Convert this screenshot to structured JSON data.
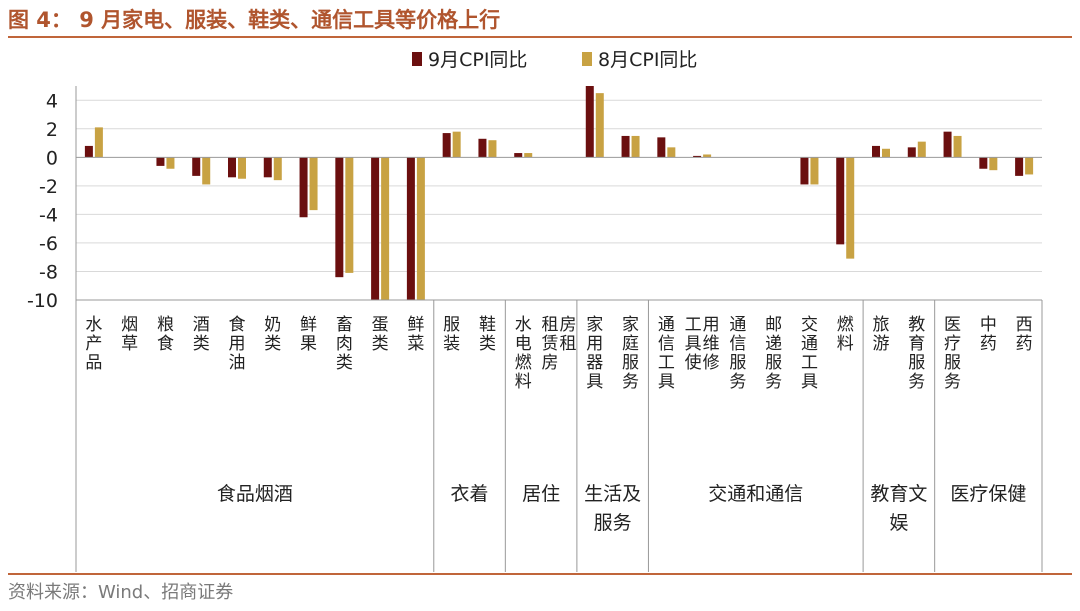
{
  "header": {
    "title": "图 4： 9 月家电、服装、鞋类、通信工具等价格上行"
  },
  "footer": {
    "source": "资料来源：Wind、招商证券"
  },
  "colors": {
    "accent": "#c0653a",
    "series1": "#6b0f0f",
    "series2": "#c8a243"
  },
  "chart_data": {
    "type": "bar",
    "title": "",
    "xlabel": "",
    "ylabel": "",
    "ylim": [
      -10,
      5
    ],
    "yticks": [
      4,
      2,
      0,
      -2,
      -4,
      -6,
      -8,
      -10
    ],
    "grid": true,
    "legend_position": "top",
    "categories": [
      "水产品",
      "烟草",
      "粮食",
      "酒类",
      "食用油",
      "奶类",
      "鲜果",
      "畜肉类",
      "蛋类",
      "鲜菜",
      "服装",
      "鞋类",
      "水电燃料",
      "租赁房房租",
      "家用器具",
      "家庭服务",
      "通信工具",
      "工具使用维修",
      "通信服务",
      "邮递服务",
      "交通工具",
      "燃料",
      "旅游",
      "教育服务",
      "医疗服务",
      "中药",
      "西药"
    ],
    "groups": [
      {
        "label": "食品烟酒",
        "count": 10
      },
      {
        "label": "衣着",
        "count": 2
      },
      {
        "label": "居住",
        "count": 2
      },
      {
        "label": "生活及服务",
        "count": 2
      },
      {
        "label": "交通和通信",
        "count": 6
      },
      {
        "label": "教育文娱",
        "count": 2
      },
      {
        "label": "医疗保健",
        "count": 3
      }
    ],
    "series": [
      {
        "name": "9月CPI同比",
        "values": [
          0.8,
          0.0,
          -0.6,
          -1.3,
          -1.4,
          -1.4,
          -4.2,
          -8.4,
          -10.2,
          -10.2,
          1.7,
          1.3,
          0.3,
          0.0,
          5.0,
          1.5,
          1.4,
          0.1,
          0.0,
          0.0,
          -1.9,
          -6.1,
          0.8,
          0.7,
          1.8,
          -0.8,
          -1.3
        ]
      },
      {
        "name": "8月CPI同比",
        "values": [
          2.1,
          0.0,
          -0.8,
          -1.9,
          -1.5,
          -1.6,
          -3.7,
          -8.1,
          -10.2,
          -10.2,
          1.8,
          1.2,
          0.3,
          0.0,
          4.5,
          1.5,
          0.7,
          0.2,
          0.0,
          0.0,
          -1.9,
          -7.1,
          0.6,
          1.1,
          1.5,
          -0.9,
          -1.2
        ]
      }
    ]
  }
}
